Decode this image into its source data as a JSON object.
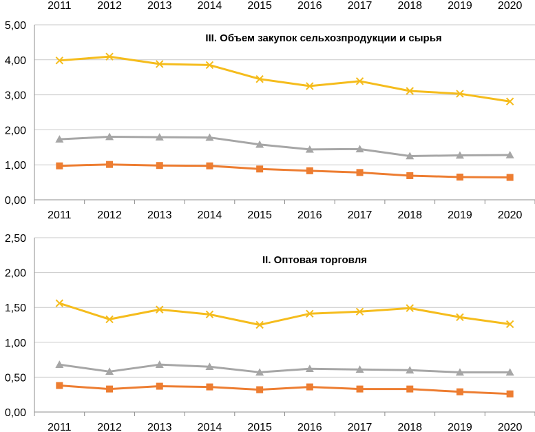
{
  "top_year_labels": [
    "2011",
    "2012",
    "2013",
    "2014",
    "2015",
    "2016",
    "2017",
    "2018",
    "2019",
    "2020"
  ],
  "colors": {
    "yellow": "#F5BC1C",
    "gray": "#A6A6A6",
    "orange": "#ED7D31",
    "grid": "#C9C9C9",
    "axis": "#8C8C8C"
  },
  "chart_data": [
    {
      "type": "line",
      "title": "III. Объем закупок сельхозпродукции и сырья",
      "categories": [
        "2011",
        "2012",
        "2013",
        "2014",
        "2015",
        "2016",
        "2017",
        "2018",
        "2019",
        "2020"
      ],
      "y_tick_labels": [
        "0,00",
        "1,00",
        "2,00",
        "3,00",
        "4,00",
        "5,00"
      ],
      "ylim": [
        0,
        5
      ],
      "y_step": 1,
      "grid": true,
      "series": [
        {
          "name": "series-yellow",
          "marker": "x",
          "color": "#F5BC1C",
          "values": [
            3.98,
            4.09,
            3.88,
            3.85,
            3.45,
            3.25,
            3.39,
            3.11,
            3.03,
            2.81
          ]
        },
        {
          "name": "series-gray",
          "marker": "triangle",
          "color": "#A6A6A6",
          "values": [
            1.73,
            1.8,
            1.79,
            1.78,
            1.58,
            1.44,
            1.45,
            1.25,
            1.27,
            1.28
          ]
        },
        {
          "name": "series-orange",
          "marker": "square",
          "color": "#ED7D31",
          "values": [
            0.97,
            1.01,
            0.98,
            0.97,
            0.88,
            0.83,
            0.78,
            0.69,
            0.65,
            0.64
          ]
        }
      ]
    },
    {
      "type": "line",
      "title": "II. Оптовая торговля",
      "categories": [
        "2011",
        "2012",
        "2013",
        "2014",
        "2015",
        "2016",
        "2017",
        "2018",
        "2019",
        "2020"
      ],
      "y_tick_labels": [
        "0,00",
        "0,50",
        "1,00",
        "1,50",
        "2,00",
        "2,50"
      ],
      "ylim": [
        0,
        2.5
      ],
      "y_step": 0.5,
      "grid": true,
      "series": [
        {
          "name": "series-yellow",
          "marker": "x",
          "color": "#F5BC1C",
          "values": [
            1.56,
            1.33,
            1.47,
            1.4,
            1.25,
            1.41,
            1.44,
            1.49,
            1.36,
            1.26
          ]
        },
        {
          "name": "series-gray",
          "marker": "triangle",
          "color": "#A6A6A6",
          "values": [
            0.68,
            0.58,
            0.68,
            0.65,
            0.57,
            0.62,
            0.61,
            0.6,
            0.57,
            0.57
          ]
        },
        {
          "name": "series-orange",
          "marker": "square",
          "color": "#ED7D31",
          "values": [
            0.38,
            0.33,
            0.37,
            0.36,
            0.32,
            0.36,
            0.33,
            0.33,
            0.29,
            0.26
          ]
        }
      ]
    }
  ]
}
